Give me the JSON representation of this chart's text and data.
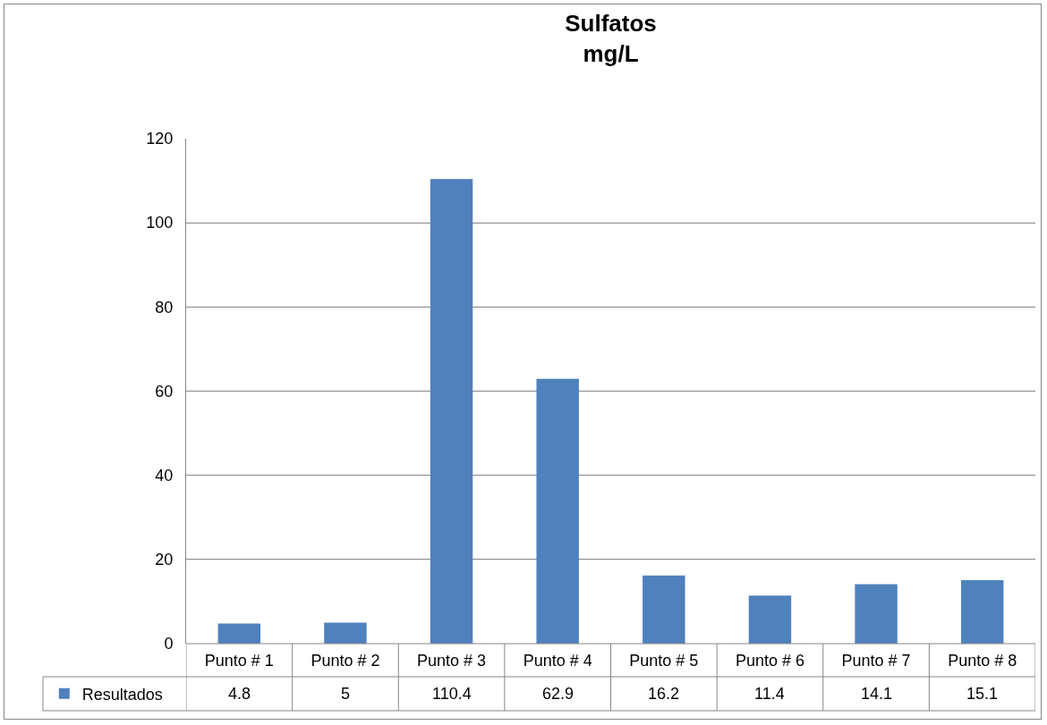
{
  "chart_data": {
    "type": "bar",
    "title": "Sulfatos\nmg/L",
    "categories": [
      "Punto # 1",
      "Punto # 2",
      "Punto # 3",
      "Punto # 4",
      "Punto # 5",
      "Punto # 6",
      "Punto # 7",
      "Punto # 8"
    ],
    "series": [
      {
        "name": "Resultados",
        "color": "#4f81bd",
        "values": [
          4.8,
          5,
          110.4,
          62.9,
          16.2,
          11.4,
          14.1,
          15.1
        ]
      }
    ],
    "ylim": [
      0,
      120
    ],
    "yticks": [
      0,
      20,
      40,
      60,
      80,
      100,
      120
    ],
    "grid": "y",
    "legend": "bottom left",
    "data_labels": true
  }
}
